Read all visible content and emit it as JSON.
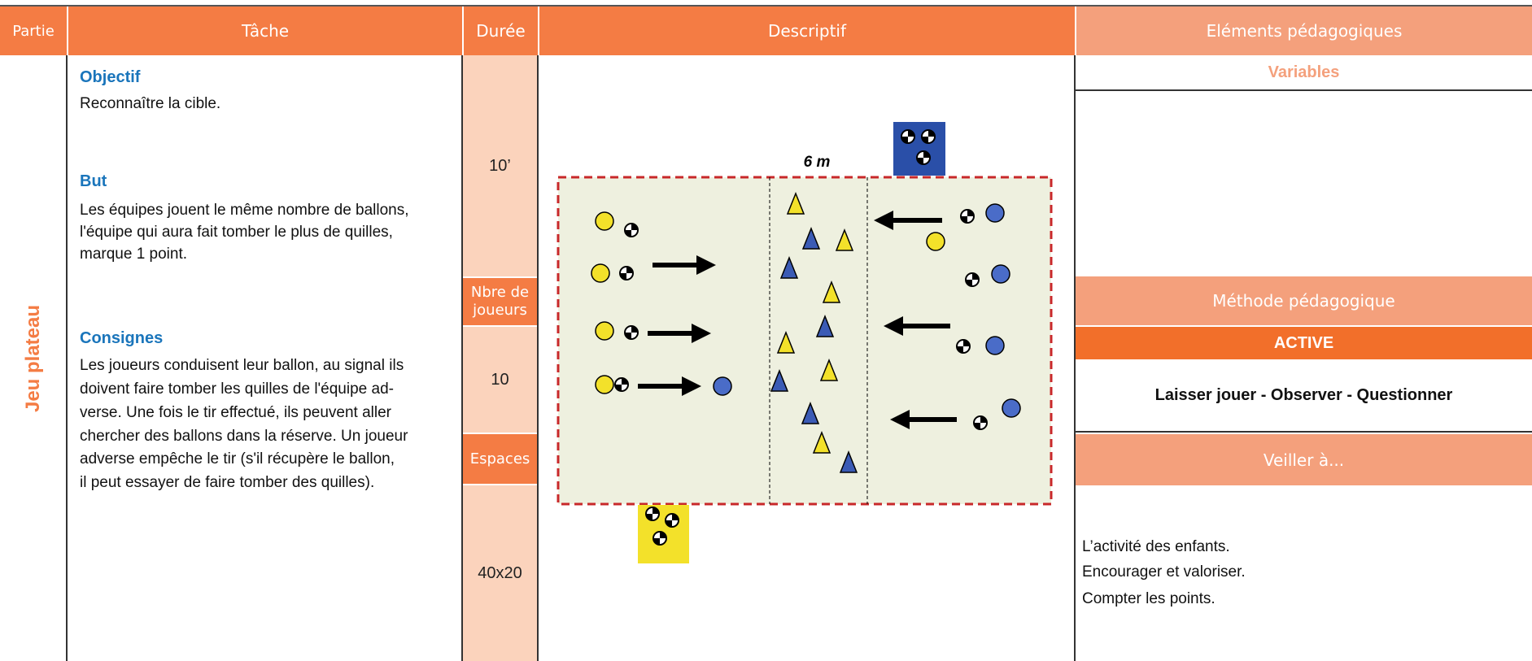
{
  "header": {
    "partie": "Partie",
    "tache": "Tâche",
    "duree": "Durée",
    "descriptif": "Descriptif",
    "elements": "Eléments pédagogiques"
  },
  "partie": "Jeu plateau",
  "tache": {
    "sections": [
      {
        "title": "Objectif",
        "lines": [
          "Reconnaître la cible."
        ]
      },
      {
        "title": "But",
        "lines": [
          "Les équipes jouent le même nombre de ballons,",
          "l'équipe qui aura fait tomber le plus de quilles,",
          "marque 1 point."
        ]
      },
      {
        "title": "Consignes",
        "lines": [
          "Les joueurs conduisent leur ballon, au signal ils",
          "doivent faire tomber les quilles de l'équipe ad-",
          "verse. Une fois le tir effectué, ils peuvent aller",
          "chercher des ballons dans la réserve. Un joueur",
          "adverse empêche le tir (s'il récupère le ballon,",
          "il peut essayer de faire tomber des quilles)."
        ]
      }
    ]
  },
  "duree": {
    "duration": "10’",
    "players_label": "Nbre de joueurs",
    "players": "10",
    "space_label": "Espaces",
    "space": "40x20"
  },
  "descriptif": {
    "distance_label": "6 m"
  },
  "elements": {
    "variables_label": "Variables",
    "method_label": "Méthode pédagogique",
    "method": "ACTIVE",
    "method_detail": "Laisser jouer - Observer - Questionner",
    "watch_label": "Veiller à...",
    "watch_lines": [
      "L’activité des enfants.",
      "Encourager et valoriser.",
      "Compter les points."
    ]
  }
}
